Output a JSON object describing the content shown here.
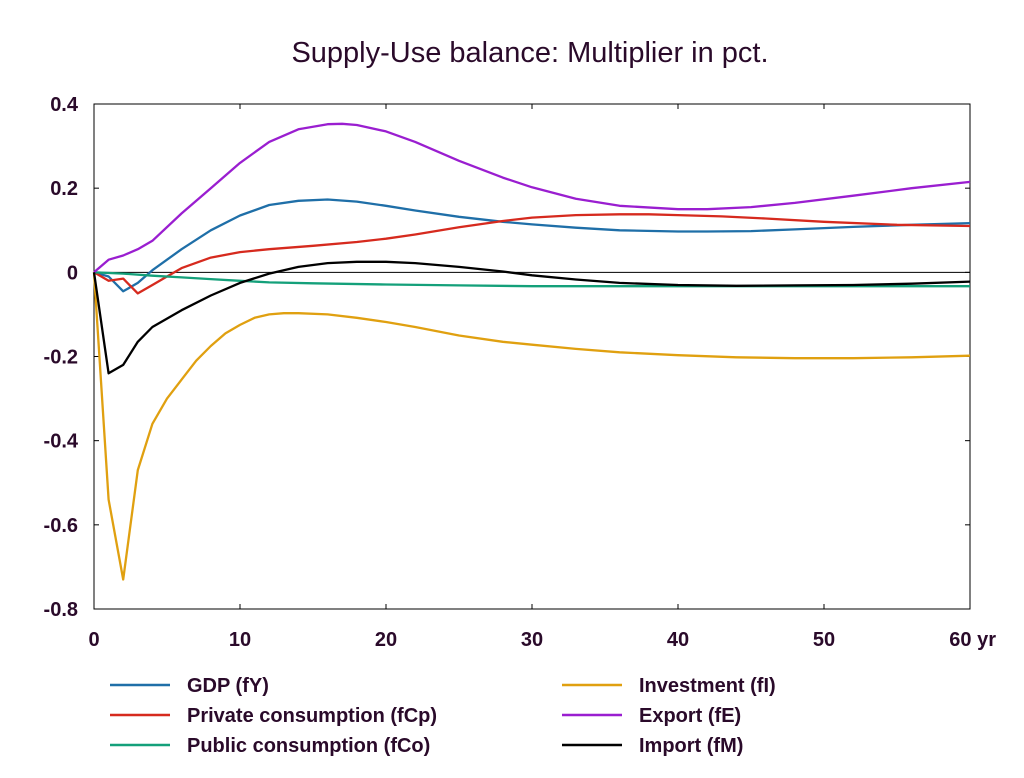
{
  "chart_data": {
    "type": "line",
    "title": "Supply-Use balance: Multiplier in pct.",
    "xlabel": "",
    "ylabel": "",
    "x_unit_label": "yr",
    "xlim": [
      0,
      60
    ],
    "ylim": [
      -0.8,
      0.4
    ],
    "x_ticks": [
      0,
      10,
      20,
      30,
      40,
      50,
      60
    ],
    "x_tick_labels": [
      "0",
      "10",
      "20",
      "30",
      "40",
      "50",
      "60"
    ],
    "y_ticks": [
      0.4,
      0.2,
      0,
      -0.2,
      -0.4,
      -0.6,
      -0.8
    ],
    "y_tick_labels": [
      "0.4",
      "0.2",
      "0",
      "-0.2",
      "-0.4",
      "-0.6",
      "-0.8"
    ],
    "grid": false,
    "zero_line": true,
    "legend_position": "bottom",
    "series": [
      {
        "name": "GDP (fY)",
        "color": "#1f6fa8",
        "x": [
          0,
          1,
          2,
          3,
          4,
          5,
          6,
          8,
          10,
          12,
          14,
          16,
          18,
          20,
          22,
          25,
          28,
          30,
          33,
          36,
          40,
          42,
          45,
          48,
          52,
          56,
          60
        ],
        "y": [
          0,
          -0.01,
          -0.045,
          -0.025,
          0.005,
          0.03,
          0.055,
          0.1,
          0.135,
          0.16,
          0.17,
          0.173,
          0.168,
          0.158,
          0.147,
          0.132,
          0.12,
          0.114,
          0.106,
          0.1,
          0.097,
          0.097,
          0.098,
          0.102,
          0.108,
          0.113,
          0.117
        ]
      },
      {
        "name": "Private consumption (fCp)",
        "color": "#d62a1e",
        "x": [
          0,
          1,
          2,
          3,
          4,
          5,
          6,
          8,
          10,
          12,
          15,
          18,
          20,
          22,
          25,
          28,
          30,
          33,
          36,
          38,
          40,
          43,
          46,
          50,
          55,
          60
        ],
        "y": [
          0,
          -0.02,
          -0.015,
          -0.05,
          -0.03,
          -0.01,
          0.01,
          0.035,
          0.048,
          0.055,
          0.063,
          0.072,
          0.08,
          0.09,
          0.107,
          0.122,
          0.13,
          0.136,
          0.138,
          0.138,
          0.136,
          0.133,
          0.128,
          0.12,
          0.113,
          0.11
        ]
      },
      {
        "name": "Public consumption (fCo)",
        "color": "#14a07a",
        "x": [
          0,
          2,
          4,
          6,
          8,
          10,
          12,
          15,
          20,
          25,
          30,
          35,
          40,
          45,
          50,
          55,
          60
        ],
        "y": [
          0,
          -0.003,
          -0.008,
          -0.012,
          -0.016,
          -0.02,
          -0.024,
          -0.026,
          -0.029,
          -0.031,
          -0.033,
          -0.033,
          -0.033,
          -0.033,
          -0.033,
          -0.033,
          -0.033
        ]
      },
      {
        "name": "Investment (fI)",
        "color": "#e0a010",
        "x": [
          0,
          1,
          2,
          3,
          4,
          5,
          6,
          7,
          8,
          9,
          10,
          11,
          12,
          13,
          14,
          16,
          18,
          20,
          22,
          25,
          28,
          30,
          33,
          36,
          40,
          44,
          48,
          52,
          56,
          60
        ],
        "y": [
          0,
          -0.54,
          -0.73,
          -0.47,
          -0.36,
          -0.3,
          -0.255,
          -0.21,
          -0.175,
          -0.145,
          -0.125,
          -0.108,
          -0.1,
          -0.097,
          -0.097,
          -0.1,
          -0.108,
          -0.118,
          -0.13,
          -0.15,
          -0.165,
          -0.172,
          -0.182,
          -0.19,
          -0.197,
          -0.202,
          -0.204,
          -0.204,
          -0.202,
          -0.198
        ]
      },
      {
        "name": "Export (fE)",
        "color": "#9a1ed0",
        "x": [
          0,
          1,
          2,
          3,
          4,
          6,
          8,
          10,
          12,
          14,
          16,
          17,
          18,
          20,
          22,
          25,
          28,
          30,
          33,
          36,
          40,
          42,
          45,
          48,
          52,
          56,
          60
        ],
        "y": [
          0,
          0.03,
          0.04,
          0.055,
          0.075,
          0.14,
          0.2,
          0.26,
          0.31,
          0.34,
          0.352,
          0.353,
          0.35,
          0.335,
          0.31,
          0.265,
          0.225,
          0.202,
          0.175,
          0.158,
          0.15,
          0.15,
          0.155,
          0.165,
          0.182,
          0.2,
          0.215
        ]
      },
      {
        "name": "Import (fM)",
        "color": "#000000",
        "x": [
          0,
          1,
          2,
          3,
          4,
          5,
          6,
          8,
          10,
          12,
          14,
          16,
          18,
          20,
          22,
          25,
          28,
          30,
          33,
          36,
          40,
          44,
          48,
          52,
          56,
          60
        ],
        "y": [
          0,
          -0.24,
          -0.22,
          -0.165,
          -0.13,
          -0.11,
          -0.09,
          -0.055,
          -0.025,
          -0.003,
          0.013,
          0.022,
          0.025,
          0.025,
          0.022,
          0.013,
          0.002,
          -0.007,
          -0.017,
          -0.025,
          -0.03,
          -0.032,
          -0.031,
          -0.03,
          -0.027,
          -0.022
        ]
      }
    ]
  }
}
